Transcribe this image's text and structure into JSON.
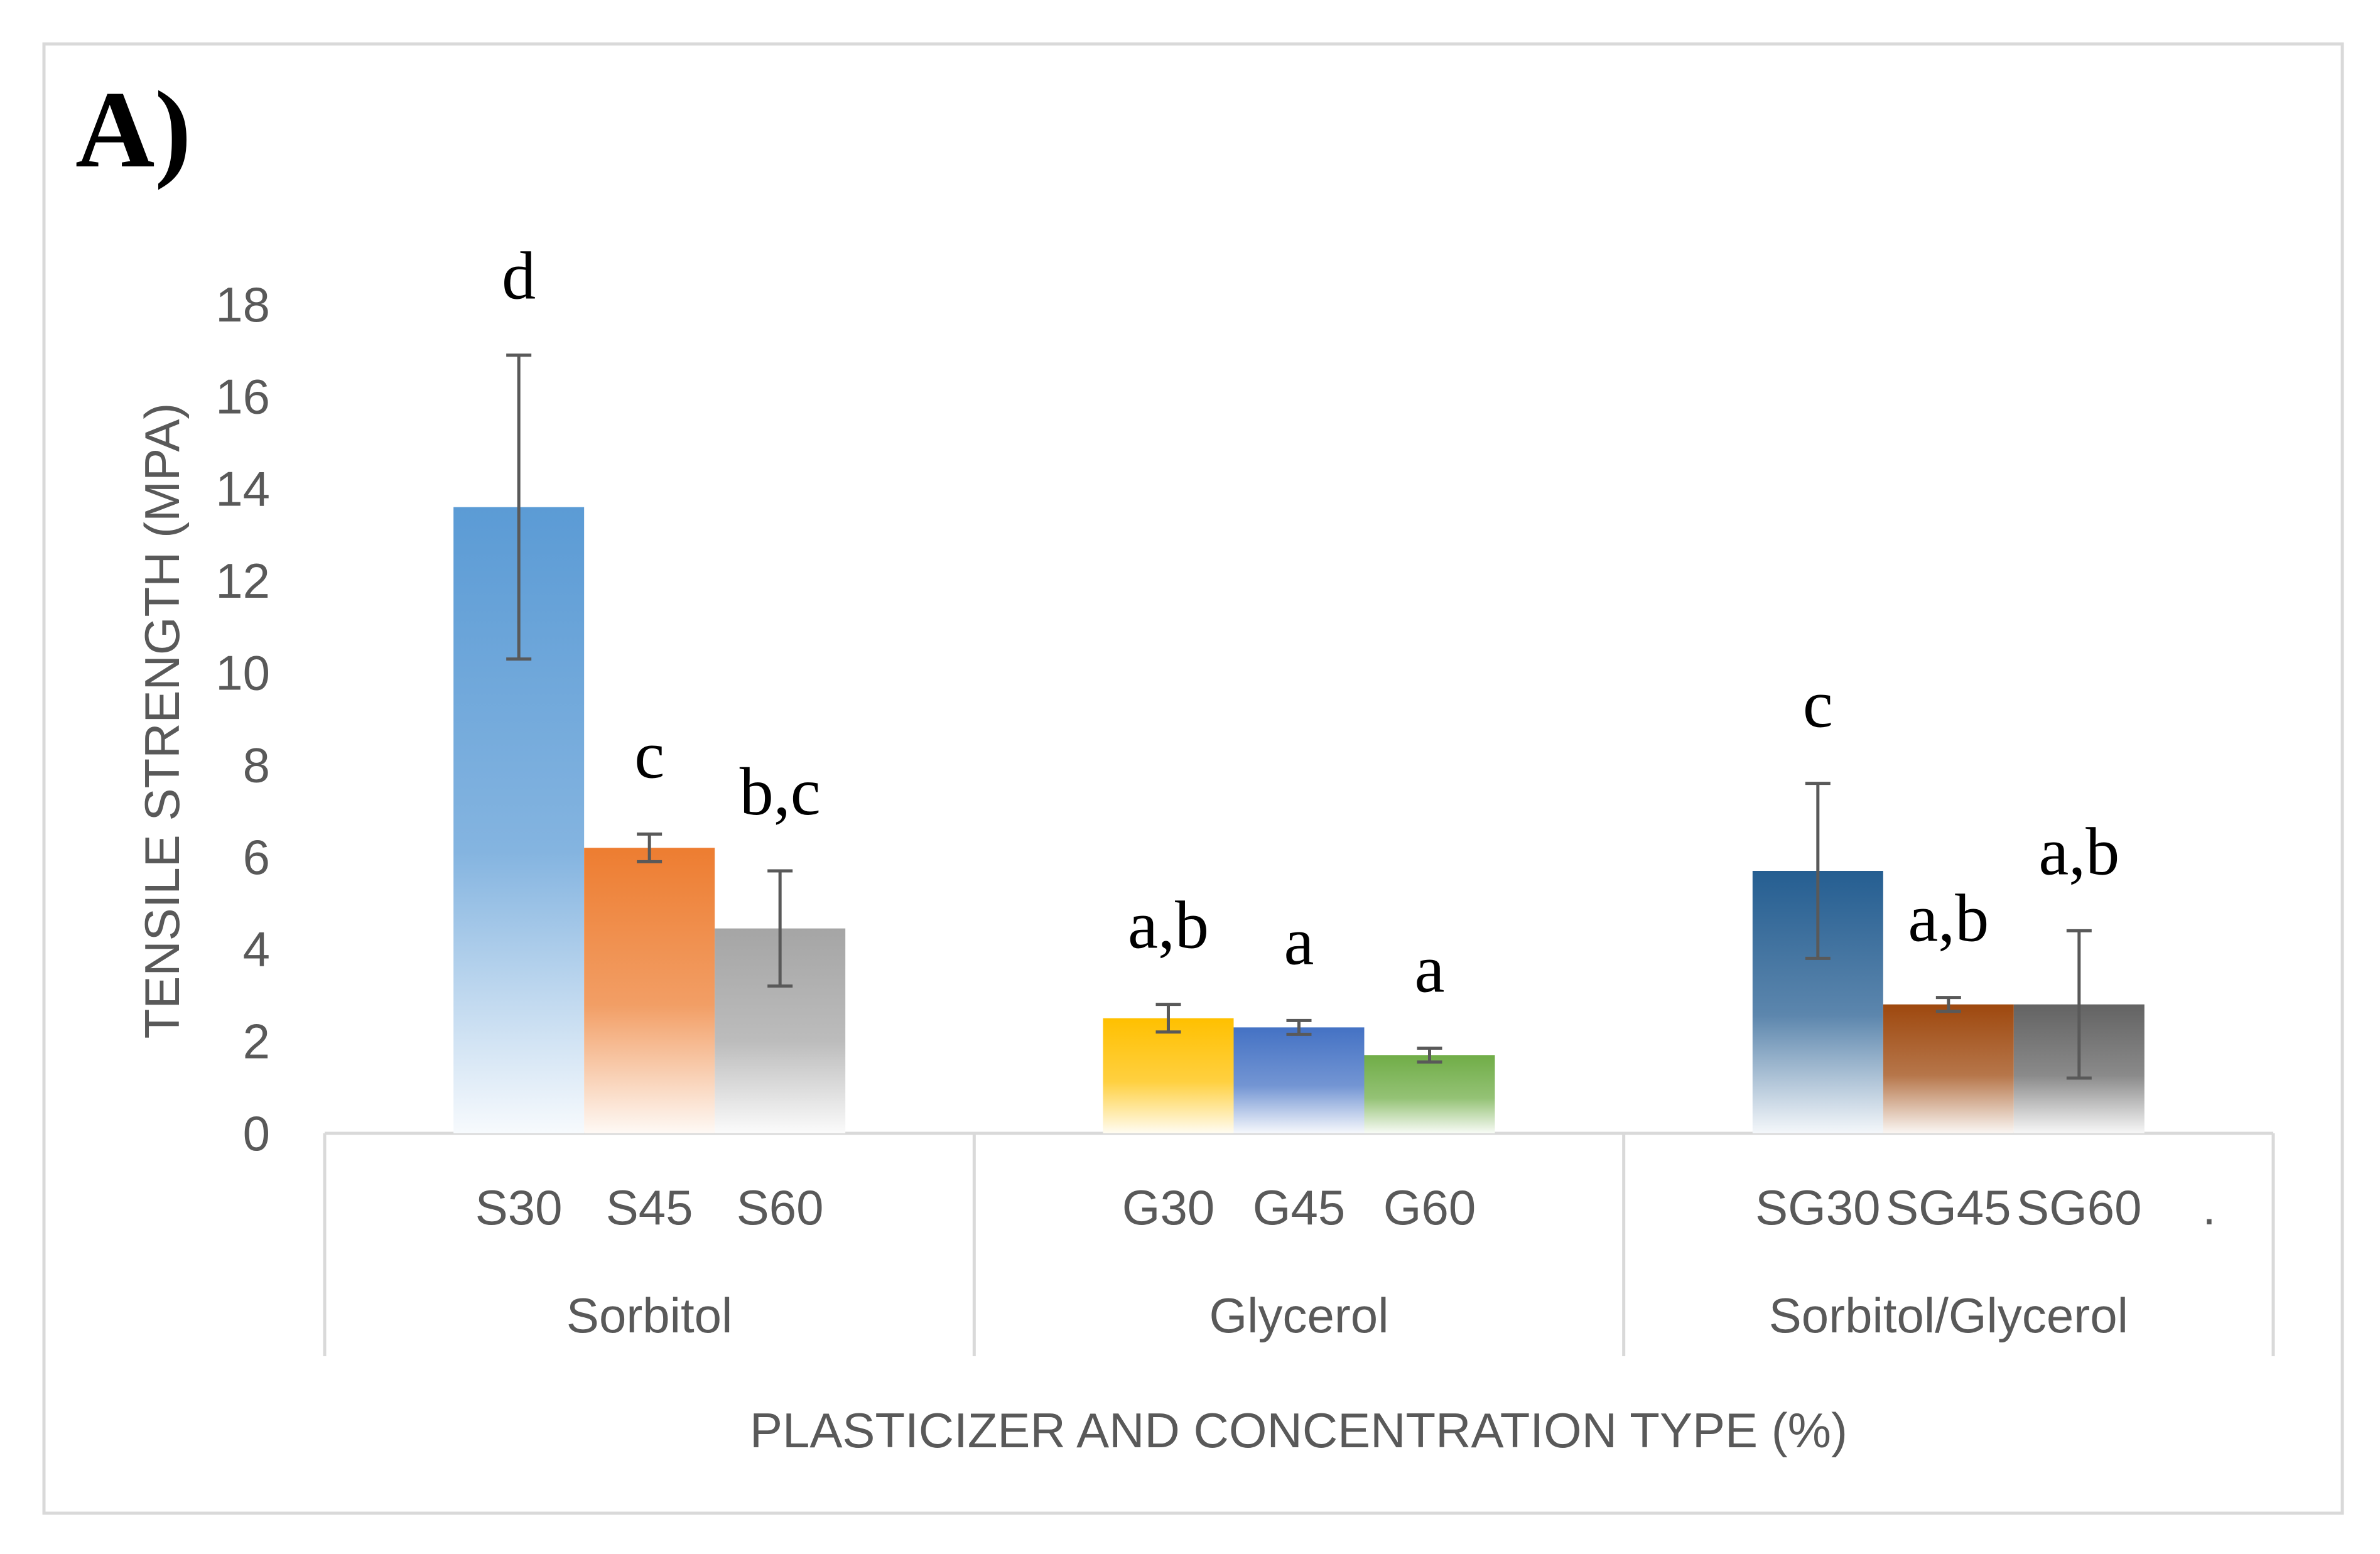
{
  "panel_label": "A)",
  "chart_data": {
    "type": "bar",
    "title": "",
    "xlabel": "PLASTICIZER AND CONCENTRATION TYPE (%)",
    "ylabel": "TENSILE STRENGTH (MPA)",
    "ylim": [
      0,
      18
    ],
    "yticks": [
      0,
      2,
      4,
      6,
      8,
      10,
      12,
      14,
      16,
      18
    ],
    "grid": false,
    "legend": "none",
    "extra_tick_mark": ".",
    "groups": [
      {
        "name": "Sorbitol",
        "bars": [
          {
            "label": "S30",
            "value": 13.6,
            "error": 3.3,
            "sig": "d",
            "color": "#5b9bd5"
          },
          {
            "label": "S45",
            "value": 6.2,
            "error": 0.3,
            "sig": "c",
            "color": "#ed7d31"
          },
          {
            "label": "S60",
            "value": 4.45,
            "error": 1.25,
            "sig": "b,c",
            "color": "#a5a5a5"
          }
        ]
      },
      {
        "name": "Glycerol",
        "bars": [
          {
            "label": "G30",
            "value": 2.5,
            "error": 0.3,
            "sig": "a,b",
            "color": "#ffc000"
          },
          {
            "label": "G45",
            "value": 2.3,
            "error": 0.15,
            "sig": "a",
            "color": "#4472c4"
          },
          {
            "label": "G60",
            "value": 1.7,
            "error": 0.15,
            "sig": "a",
            "color": "#70ad47"
          }
        ]
      },
      {
        "name": "Sorbitol/Glycerol",
        "bars": [
          {
            "label": "SG30",
            "value": 5.7,
            "error": 1.9,
            "sig": "c",
            "color": "#255e91"
          },
          {
            "label": "SG45",
            "value": 2.8,
            "error": 0.15,
            "sig": "a,b",
            "color": "#9e480e"
          },
          {
            "label": "SG60",
            "value": 2.8,
            "error": 1.6,
            "sig": "a,b",
            "color": "#636363"
          }
        ]
      }
    ]
  }
}
